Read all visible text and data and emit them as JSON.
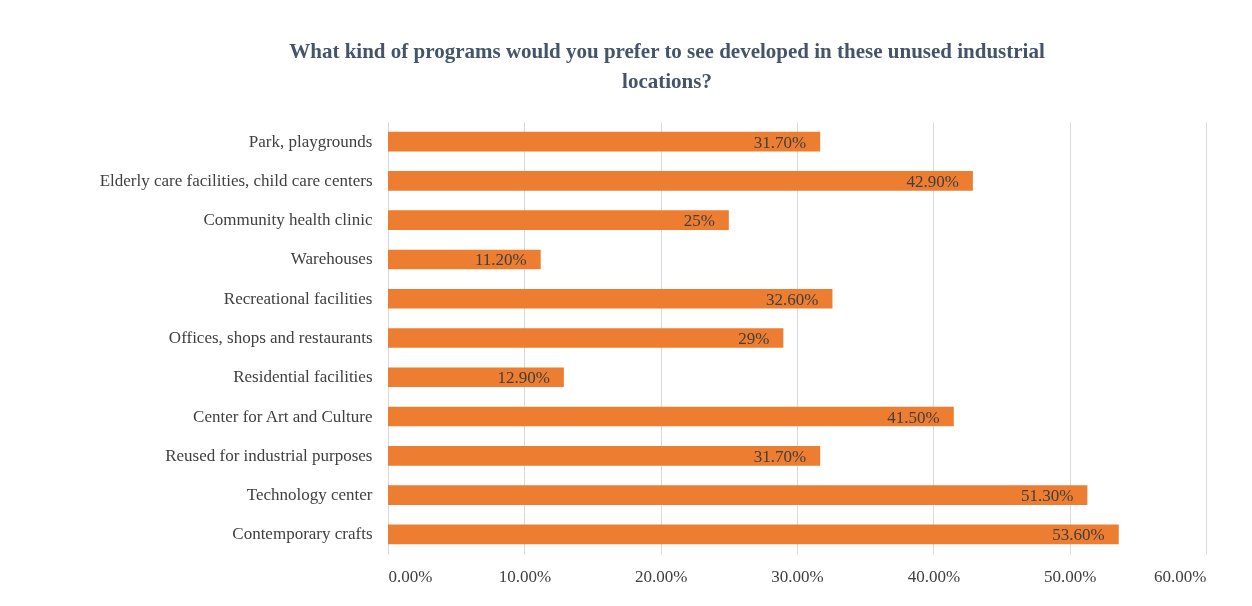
{
  "chart_data": {
    "type": "bar",
    "orientation": "horizontal",
    "title": "What kind of programs would you prefer to see developed in these unused industrial locations?",
    "categories": [
      "Park, playgrounds",
      "Elderly care facilities, child care centers",
      "Community health clinic",
      "Warehouses",
      "Recreational facilities",
      "Offices, shops and restaurants",
      "Residential facilities",
      "Center for Art and Culture",
      "Reused for industrial purposes",
      "Technology center",
      "Contemporary crafts"
    ],
    "values": [
      31.7,
      42.9,
      25,
      11.2,
      32.6,
      29,
      12.9,
      41.5,
      31.7,
      51.3,
      53.6
    ],
    "value_labels": [
      "31.70%",
      "42.90%",
      "25%",
      "11.20%",
      "32.60%",
      "29%",
      "12.90%",
      "41.50%",
      "31.70%",
      "51.30%",
      "53.60%"
    ],
    "color": "#ed7d31",
    "xlim": [
      0,
      60
    ],
    "xticks": [
      {
        "value": 0,
        "label": "0.00%"
      },
      {
        "value": 10,
        "label": "10.00%"
      },
      {
        "value": 20,
        "label": "20.00%"
      },
      {
        "value": 30,
        "label": "30.00%"
      },
      {
        "value": 40,
        "label": "40.00%"
      },
      {
        "value": 50,
        "label": "50.00%"
      },
      {
        "value": 60,
        "label": "60.00%"
      }
    ],
    "grid": "x"
  }
}
